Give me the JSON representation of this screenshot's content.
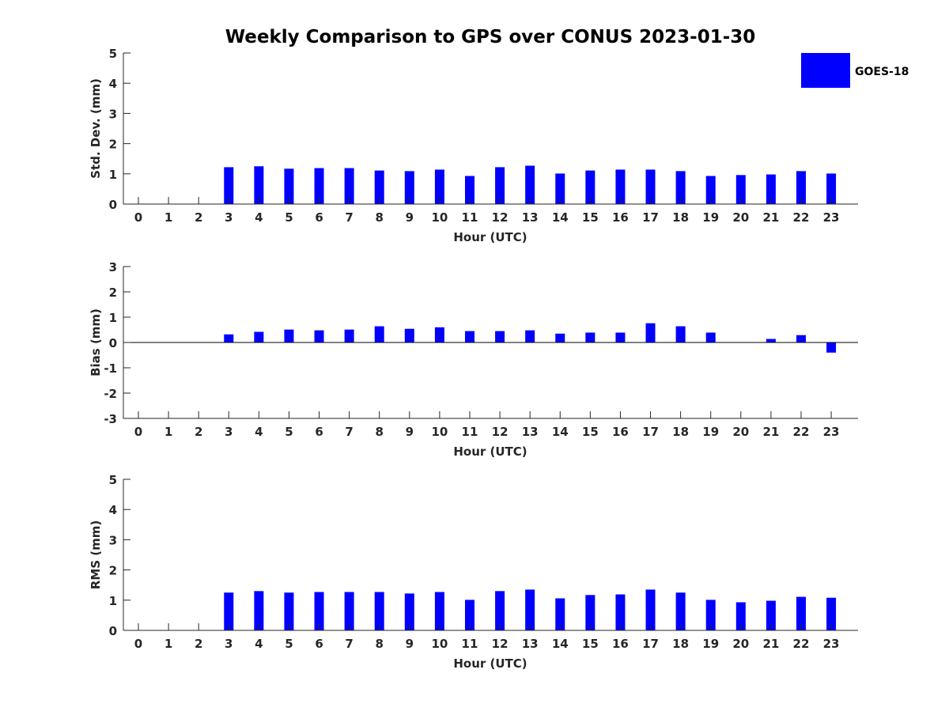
{
  "chart_data": [
    {
      "type": "bar",
      "title": "Weekly Comparison to GPS over CONUS 2023-01-30",
      "xlabel": "Hour (UTC)",
      "ylabel": "Std. Dev. (mm)",
      "ylim": [
        0,
        5
      ],
      "yticks": [
        0,
        1,
        2,
        3,
        4,
        5
      ],
      "categories": [
        0,
        1,
        2,
        3,
        4,
        5,
        6,
        7,
        8,
        9,
        10,
        11,
        12,
        13,
        14,
        15,
        16,
        17,
        18,
        19,
        20,
        21,
        22,
        23
      ],
      "series": [
        {
          "name": "GOES-18",
          "color": "#0000ff",
          "values": [
            null,
            null,
            null,
            1.22,
            1.25,
            1.17,
            1.19,
            1.19,
            1.11,
            1.09,
            1.14,
            0.93,
            1.22,
            1.27,
            1.01,
            1.11,
            1.14,
            1.14,
            1.09,
            0.93,
            0.96,
            0.98,
            1.09,
            1.01
          ]
        }
      ],
      "legend": {
        "position": "top-right",
        "entries": [
          "GOES-18"
        ]
      }
    },
    {
      "type": "bar",
      "xlabel": "Hour (UTC)",
      "ylabel": "Bias (mm)",
      "ylim": [
        -3,
        3
      ],
      "yticks": [
        -3,
        -2,
        -1,
        0,
        1,
        2,
        3
      ],
      "categories": [
        0,
        1,
        2,
        3,
        4,
        5,
        6,
        7,
        8,
        9,
        10,
        11,
        12,
        13,
        14,
        15,
        16,
        17,
        18,
        19,
        20,
        21,
        22,
        23
      ],
      "series": [
        {
          "name": "GOES-18",
          "color": "#0000ff",
          "values": [
            null,
            null,
            null,
            0.32,
            0.42,
            0.51,
            0.48,
            0.51,
            0.64,
            0.54,
            0.6,
            0.45,
            0.45,
            0.48,
            0.35,
            0.39,
            0.39,
            0.76,
            0.64,
            0.39,
            0.01,
            0.14,
            0.29,
            -0.4
          ]
        }
      ]
    },
    {
      "type": "bar",
      "xlabel": "Hour (UTC)",
      "ylabel": "RMS (mm)",
      "ylim": [
        0,
        5
      ],
      "yticks": [
        0,
        1,
        2,
        3,
        4,
        5
      ],
      "categories": [
        0,
        1,
        2,
        3,
        4,
        5,
        6,
        7,
        8,
        9,
        10,
        11,
        12,
        13,
        14,
        15,
        16,
        17,
        18,
        19,
        20,
        21,
        22,
        23
      ],
      "series": [
        {
          "name": "GOES-18",
          "color": "#0000ff",
          "values": [
            null,
            null,
            null,
            1.25,
            1.3,
            1.25,
            1.27,
            1.27,
            1.27,
            1.22,
            1.27,
            1.01,
            1.3,
            1.35,
            1.06,
            1.17,
            1.19,
            1.35,
            1.25,
            1.01,
            0.93,
            0.98,
            1.11,
            1.08
          ]
        }
      ]
    }
  ]
}
